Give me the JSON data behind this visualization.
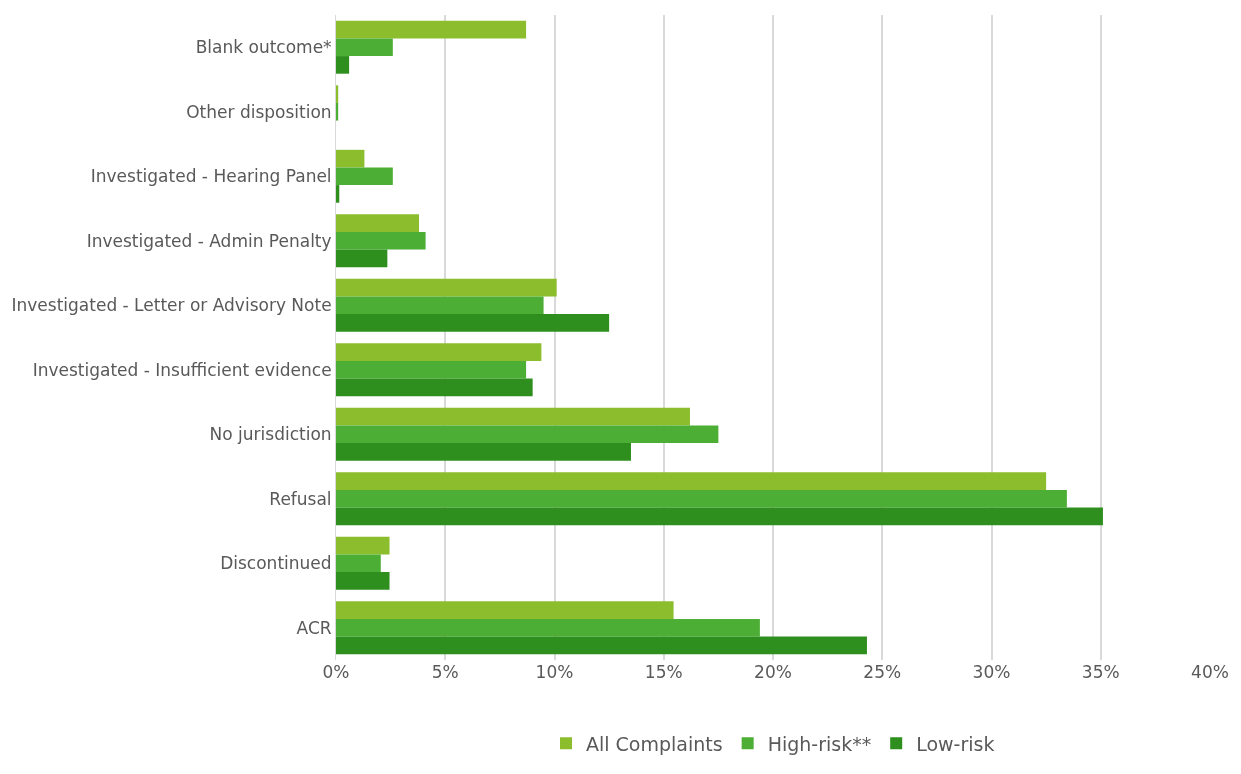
{
  "chart_data": {
    "type": "bar",
    "orientation": "horizontal",
    "categories": [
      "Blank outcome*",
      "Other disposition",
      "Investigated - Hearing Panel",
      "Investigated - Admin Penalty",
      "Investigated - Letter or Advisory Note",
      "Investigated - Insufficient evidence",
      "No jurisdiction",
      "Refusal",
      "Discontinued",
      "ACR"
    ],
    "series": [
      {
        "name": "All Complaints",
        "color": "#8cbd2c",
        "values": [
          8.7,
          0.1,
          1.3,
          3.8,
          10.1,
          9.4,
          16.2,
          32.5,
          2.45,
          15.45
        ]
      },
      {
        "name": "High-risk**",
        "color": "#4cae34",
        "values": [
          2.6,
          0.1,
          2.6,
          4.1,
          9.5,
          8.7,
          17.5,
          33.45,
          2.05,
          19.4
        ]
      },
      {
        "name": "Low-risk",
        "color": "#2e8f1e",
        "values": [
          0.6,
          null,
          0.15,
          2.35,
          12.5,
          9.0,
          13.5,
          35.1,
          2.45,
          24.3
        ]
      }
    ],
    "xlim": [
      0,
      40
    ],
    "xticks": [
      {
        "value": 0,
        "label": "0%"
      },
      {
        "value": 5,
        "label": "5%"
      },
      {
        "value": 10,
        "label": "10%"
      },
      {
        "value": 15,
        "label": "15%"
      },
      {
        "value": 20,
        "label": "20%"
      },
      {
        "value": 25,
        "label": "25%"
      },
      {
        "value": 30,
        "label": "30%"
      },
      {
        "value": 35,
        "label": "35%"
      },
      {
        "value": 40,
        "label": "40%"
      }
    ],
    "grid": "x",
    "legend": "bottom"
  }
}
